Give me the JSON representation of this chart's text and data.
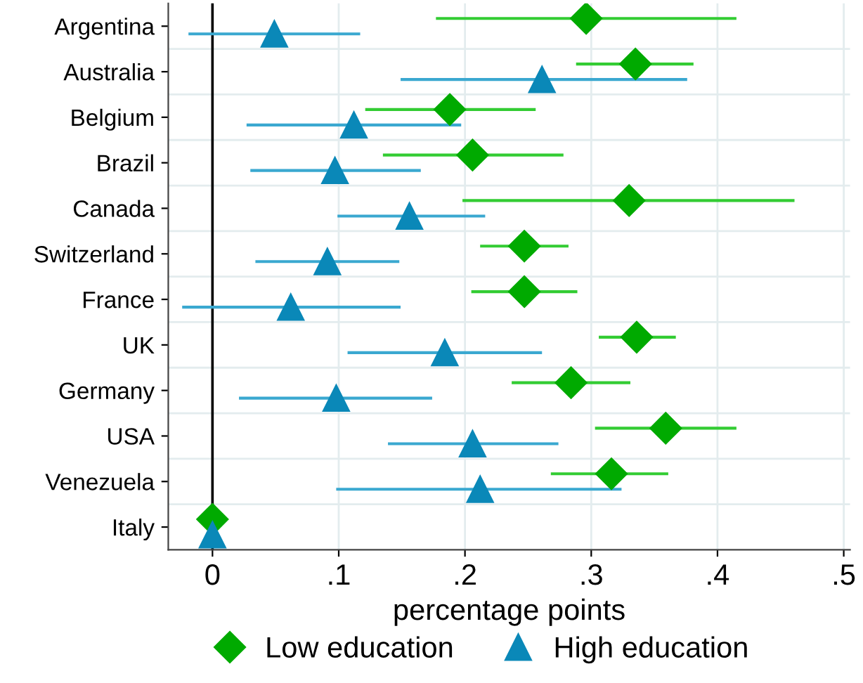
{
  "chart_data": {
    "type": "scatter",
    "orientation": "horizontal",
    "categories": [
      "Argentina",
      "Australia",
      "Belgium",
      "Brazil",
      "Canada",
      "Switzerland",
      "France",
      "UK",
      "Germany",
      "USA",
      "Venezuela",
      "Italy"
    ],
    "series": [
      {
        "name": "Low education",
        "color": "#00aa00",
        "marker": "diamond",
        "values": [
          0.296,
          0.335,
          0.188,
          0.206,
          0.33,
          0.247,
          0.247,
          0.336,
          0.284,
          0.359,
          0.316,
          0
        ],
        "errors": [
          [
            0.177,
            0.415
          ],
          [
            0.288,
            0.381
          ],
          [
            0.121,
            0.256
          ],
          [
            0.135,
            0.278
          ],
          [
            0.198,
            0.461
          ],
          [
            0.212,
            0.282
          ],
          [
            0.205,
            0.289
          ],
          [
            0.306,
            0.367
          ],
          [
            0.237,
            0.331
          ],
          [
            0.303,
            0.415
          ],
          [
            0.268,
            0.361
          ],
          null
        ]
      },
      {
        "name": "High education",
        "color": "#0a88b8",
        "marker": "triangle",
        "values": [
          0.049,
          0.261,
          0.112,
          0.097,
          0.156,
          0.091,
          0.062,
          0.184,
          0.098,
          0.206,
          0.212,
          0
        ],
        "errors": [
          [
            -0.019,
            0.117
          ],
          [
            0.149,
            0.376
          ],
          [
            0.027,
            0.197
          ],
          [
            0.03,
            0.165
          ],
          [
            0.099,
            0.216
          ],
          [
            0.034,
            0.148
          ],
          [
            -0.024,
            0.149
          ],
          [
            0.107,
            0.261
          ],
          [
            0.021,
            0.174
          ],
          [
            0.139,
            0.274
          ],
          [
            0.098,
            0.324
          ],
          null
        ]
      }
    ],
    "xlabel": "percentage points",
    "xlim": [
      -0.035,
      0.505
    ],
    "xticks": [
      {
        "value": 0,
        "label": "0"
      },
      {
        "value": 0.1,
        "label": ".1"
      },
      {
        "value": 0.2,
        "label": ".2"
      },
      {
        "value": 0.3,
        "label": ".3"
      },
      {
        "value": 0.4,
        "label": ".4"
      },
      {
        "value": 0.5,
        "label": ".5"
      }
    ],
    "ref_lines": [
      {
        "axis": "x",
        "value": 0,
        "color": "#000000"
      }
    ],
    "grid": true,
    "legend": "bottom"
  }
}
